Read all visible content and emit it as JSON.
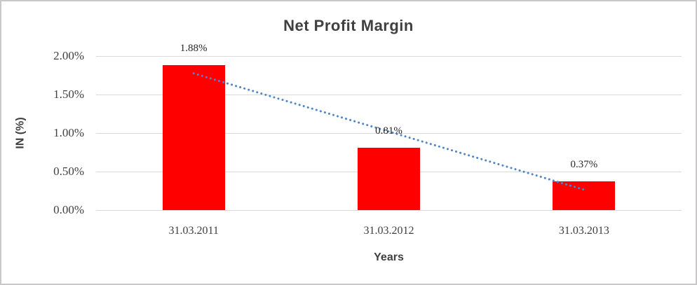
{
  "chart_data": {
    "type": "bar",
    "title": "Net Profit Margin",
    "xlabel": "Years",
    "ylabel": "IN (%)",
    "categories": [
      "31.03.2011",
      "31.03.2012",
      "31.03.2013"
    ],
    "values": [
      1.88,
      0.81,
      0.37
    ],
    "data_labels": [
      "1.88%",
      "0.81%",
      "0.37%"
    ],
    "ytick_labels": [
      "0.00%",
      "0.50%",
      "1.00%",
      "1.50%",
      "2.00%"
    ],
    "ytick_values": [
      0.0,
      0.5,
      1.0,
      1.5,
      2.0
    ],
    "ylim": [
      0,
      2.0
    ],
    "grid": true,
    "legend": "none",
    "bar_color": "#ff0000",
    "gridline_color": "#d9d9d9",
    "title_color": "#404040",
    "label_color": "#262626",
    "trendline": {
      "type": "linear",
      "style": "dotted",
      "color": "#4e86c8",
      "fit_values": [
        1.775,
        0.265
      ]
    }
  }
}
